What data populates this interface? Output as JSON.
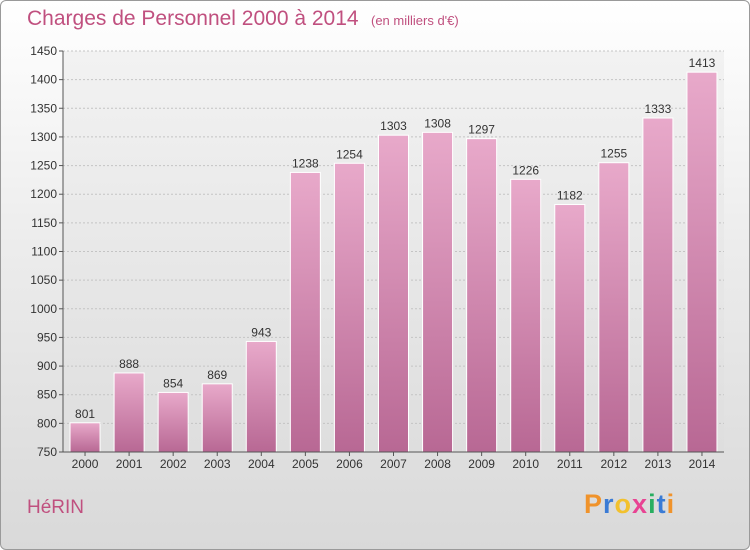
{
  "title": "Charges de Personnel 2000 à 2014",
  "subtitle": "(en milliers d'€)",
  "commune": "HéRIN",
  "logo": {
    "letters": [
      "P",
      "r",
      "o",
      "x",
      "i",
      "t",
      "i"
    ],
    "colors": [
      "#f0932b",
      "#3a7bd5",
      "#f2c12e",
      "#e84393",
      "#27ae60",
      "#3a7bd5",
      "#f0932b"
    ]
  },
  "chart_data": {
    "type": "bar",
    "title": "Charges de Personnel 2000 à 2014",
    "subtitle": "(en milliers d'€)",
    "categories": [
      "2000",
      "2001",
      "2002",
      "2003",
      "2004",
      "2005",
      "2006",
      "2007",
      "2008",
      "2009",
      "2010",
      "2011",
      "2012",
      "2013",
      "2014"
    ],
    "values": [
      801,
      888,
      854,
      869,
      943,
      1238,
      1254,
      1303,
      1308,
      1297,
      1226,
      1182,
      1255,
      1333,
      1413
    ],
    "ylim": [
      750,
      1450
    ],
    "yticks": [
      750,
      800,
      850,
      900,
      950,
      1000,
      1050,
      1100,
      1150,
      1200,
      1250,
      1300,
      1350,
      1400,
      1450
    ],
    "grid": true,
    "bar_color": "#d98ab0",
    "xlabel": "",
    "ylabel": ""
  }
}
